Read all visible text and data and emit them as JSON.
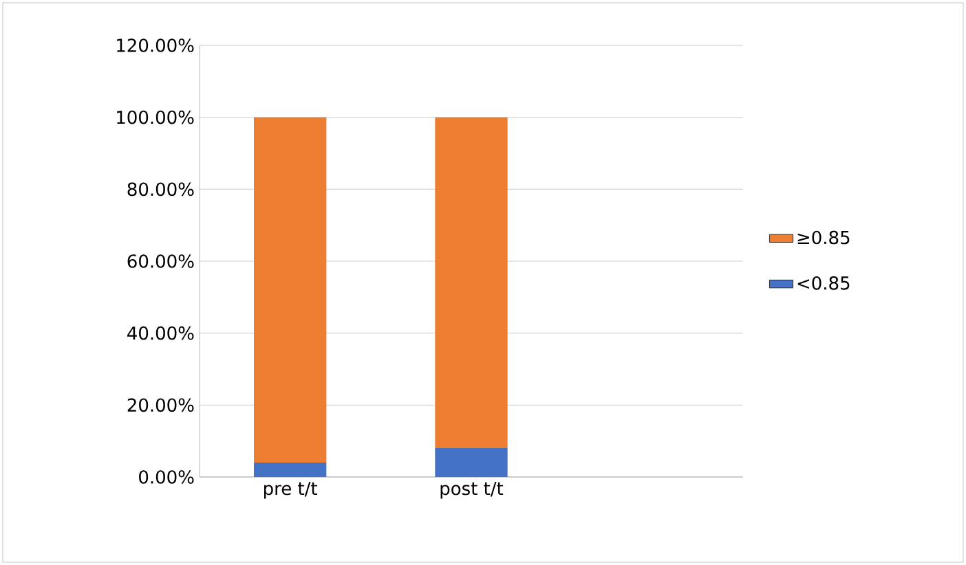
{
  "chart_data": {
    "type": "bar",
    "stacked": true,
    "categories": [
      "pre t/t",
      "post t/t",
      null
    ],
    "series": [
      {
        "name": "<0.85",
        "color": "#4472c4",
        "values": [
          4,
          8,
          null
        ]
      },
      {
        "name": "≥0.85",
        "color": "#ed7d31",
        "values": [
          96,
          92,
          null
        ]
      }
    ],
    "ylim": [
      0,
      120
    ],
    "yticks": [
      {
        "value": 0,
        "label": "0.00%"
      },
      {
        "value": 20,
        "label": "20.00%"
      },
      {
        "value": 40,
        "label": "40.00%"
      },
      {
        "value": 60,
        "label": "60.00%"
      },
      {
        "value": 80,
        "label": "80.00%"
      },
      {
        "value": 100,
        "label": "100.00%"
      },
      {
        "value": 120,
        "label": "120.00%"
      }
    ],
    "grid": "y",
    "legend": "right"
  }
}
